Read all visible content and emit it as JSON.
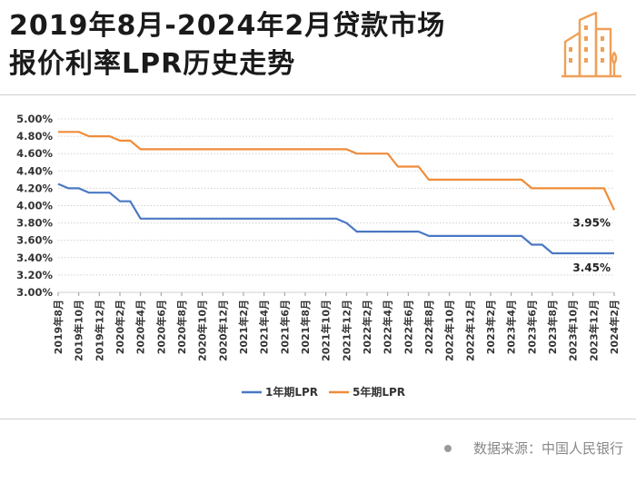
{
  "header": {
    "title_line1": "2019年8月-2024年2月贷款市场",
    "title_line2": "报价利率LPR历史走势"
  },
  "logo": {
    "icon": "city-buildings-icon",
    "color": "#f0a057"
  },
  "source": {
    "text": "数据来源：中国人民银行"
  },
  "colors": {
    "lpr1": "#4a78c4",
    "lpr5": "#ef8c3a",
    "grid": "#bfbfbf"
  },
  "chart_data": {
    "type": "line",
    "ylim": [
      3.0,
      5.0
    ],
    "yticks": [
      "3.00%",
      "3.20%",
      "3.40%",
      "3.60%",
      "3.80%",
      "4.00%",
      "4.20%",
      "4.40%",
      "4.60%",
      "4.80%",
      "5.00%"
    ],
    "x_tick_labels": [
      "2019年8月",
      "2019年10月",
      "2019年12月",
      "2020年2月",
      "2020年4月",
      "2020年6月",
      "2020年8月",
      "2020年10月",
      "2020年12月",
      "2021年2月",
      "2021年4月",
      "2021年6月",
      "2021年8月",
      "2021年10月",
      "2021年12月",
      "2022年2月",
      "2022年4月",
      "2022年6月",
      "2022年8月",
      "2022年10月",
      "2022年12月",
      "2023年2月",
      "2023年4月",
      "2023年6月",
      "2023年8月",
      "2023年10月",
      "2023年12月",
      "2024年2月"
    ],
    "x": [
      "2019-08",
      "2019-09",
      "2019-10",
      "2019-11",
      "2019-12",
      "2020-01",
      "2020-02",
      "2020-03",
      "2020-04",
      "2020-05",
      "2020-06",
      "2020-07",
      "2020-08",
      "2020-09",
      "2020-10",
      "2020-11",
      "2020-12",
      "2021-01",
      "2021-02",
      "2021-03",
      "2021-04",
      "2021-05",
      "2021-06",
      "2021-07",
      "2021-08",
      "2021-09",
      "2021-10",
      "2021-11",
      "2021-12",
      "2022-01",
      "2022-02",
      "2022-03",
      "2022-04",
      "2022-05",
      "2022-06",
      "2022-07",
      "2022-08",
      "2022-09",
      "2022-10",
      "2022-11",
      "2022-12",
      "2023-01",
      "2023-02",
      "2023-03",
      "2023-04",
      "2023-05",
      "2023-06",
      "2023-07",
      "2023-08",
      "2023-09",
      "2023-10",
      "2023-11",
      "2023-12",
      "2024-01",
      "2024-02"
    ],
    "series": [
      {
        "name": "1年期LPR",
        "color": "#4a78c4",
        "values": [
          4.25,
          4.2,
          4.2,
          4.15,
          4.15,
          4.15,
          4.05,
          4.05,
          3.85,
          3.85,
          3.85,
          3.85,
          3.85,
          3.85,
          3.85,
          3.85,
          3.85,
          3.85,
          3.85,
          3.85,
          3.85,
          3.85,
          3.85,
          3.85,
          3.85,
          3.85,
          3.85,
          3.85,
          3.8,
          3.7,
          3.7,
          3.7,
          3.7,
          3.7,
          3.7,
          3.7,
          3.65,
          3.65,
          3.65,
          3.65,
          3.65,
          3.65,
          3.65,
          3.65,
          3.65,
          3.65,
          3.55,
          3.55,
          3.45,
          3.45,
          3.45,
          3.45,
          3.45,
          3.45,
          3.45
        ]
      },
      {
        "name": "5年期LPR",
        "color": "#ef8c3a",
        "values": [
          4.85,
          4.85,
          4.85,
          4.8,
          4.8,
          4.8,
          4.75,
          4.75,
          4.65,
          4.65,
          4.65,
          4.65,
          4.65,
          4.65,
          4.65,
          4.65,
          4.65,
          4.65,
          4.65,
          4.65,
          4.65,
          4.65,
          4.65,
          4.65,
          4.65,
          4.65,
          4.65,
          4.65,
          4.65,
          4.6,
          4.6,
          4.6,
          4.6,
          4.45,
          4.45,
          4.45,
          4.3,
          4.3,
          4.3,
          4.3,
          4.3,
          4.3,
          4.3,
          4.3,
          4.3,
          4.3,
          4.2,
          4.2,
          4.2,
          4.2,
          4.2,
          4.2,
          4.2,
          4.2,
          3.95
        ]
      }
    ],
    "end_labels": [
      "3.95%",
      "3.45%"
    ],
    "legend": {
      "position": "bottom-center",
      "items": [
        "1年期LPR",
        "5年期LPR"
      ]
    },
    "grid": true
  }
}
